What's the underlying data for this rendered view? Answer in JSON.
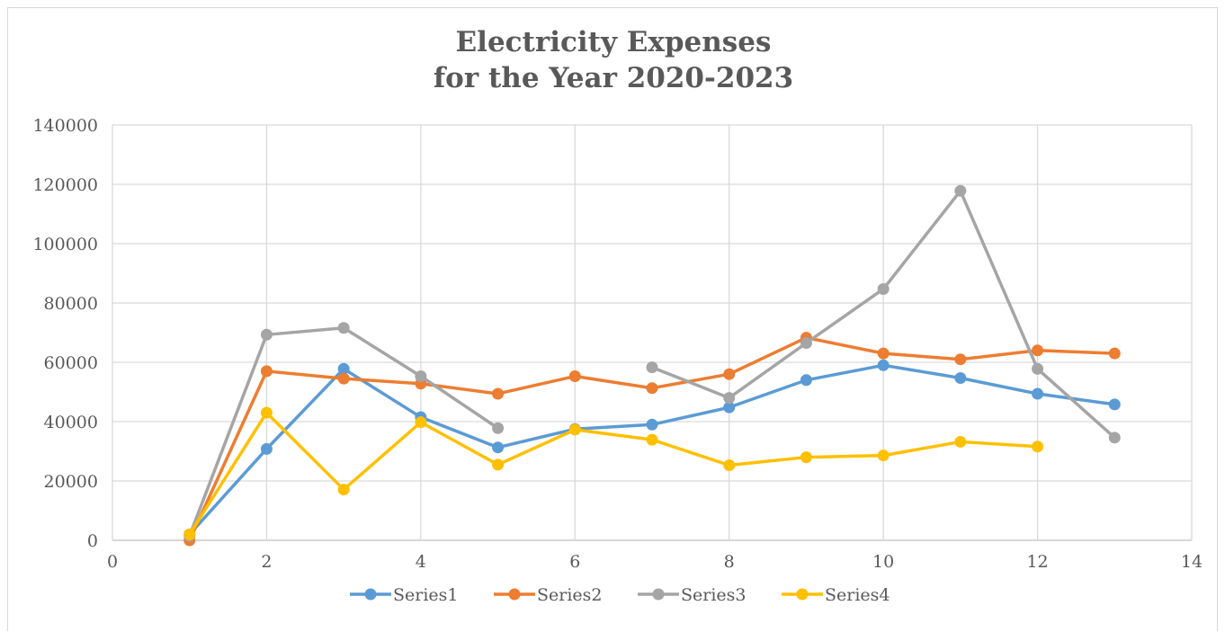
{
  "chart_data": {
    "type": "scatter",
    "title_lines": [
      "Electricity Expenses",
      "for the Year 2020-2023"
    ],
    "xlabel": "",
    "ylabel": "",
    "xlim": [
      0,
      14
    ],
    "ylim": [
      0,
      140000
    ],
    "x_ticks": [
      0,
      2,
      4,
      6,
      8,
      10,
      12,
      14
    ],
    "y_ticks": [
      0,
      20000,
      40000,
      60000,
      80000,
      100000,
      120000,
      140000
    ],
    "x_tick_labels": [
      "0",
      "2",
      "4",
      "6",
      "8",
      "10",
      "12",
      "14"
    ],
    "y_tick_labels": [
      "0",
      "20000",
      "40000",
      "60000",
      "80000",
      "100000",
      "120000",
      "140000"
    ],
    "grid": true,
    "legend_position": "bottom",
    "series": [
      {
        "name": "Series1",
        "color": "#5b9bd5",
        "points": [
          [
            1,
            2000
          ],
          [
            2,
            30800
          ],
          [
            3,
            57800
          ],
          [
            4,
            41500
          ],
          [
            5,
            31300
          ],
          [
            6,
            37500
          ],
          [
            7,
            39000
          ],
          [
            8,
            44800
          ],
          [
            9,
            54000
          ],
          [
            10,
            59000
          ],
          [
            11,
            54700
          ],
          [
            12,
            49400
          ],
          [
            13,
            45800
          ]
        ]
      },
      {
        "name": "Series2",
        "color": "#ed7d31",
        "points": [
          [
            1,
            0
          ],
          [
            2,
            57000
          ],
          [
            3,
            54500
          ],
          [
            4,
            52800
          ],
          [
            5,
            49400
          ],
          [
            6,
            55300
          ],
          [
            7,
            51300
          ],
          [
            8,
            56000
          ],
          [
            9,
            68300
          ],
          [
            10,
            63000
          ],
          [
            11,
            61000
          ],
          [
            12,
            64000
          ],
          [
            13,
            63000
          ]
        ]
      },
      {
        "name": "Series3",
        "color": "#a5a5a5",
        "points": [
          [
            1,
            1500
          ],
          [
            2,
            69300
          ],
          [
            3,
            71600
          ],
          [
            4,
            55300
          ],
          [
            5,
            37800
          ],
          [
            7,
            58300
          ],
          [
            8,
            48000
          ],
          [
            9,
            66500
          ],
          [
            10,
            84700
          ],
          [
            11,
            117800
          ],
          [
            12,
            57800
          ],
          [
            13,
            34600
          ]
        ]
      },
      {
        "name": "Series4",
        "color": "#ffc000",
        "points": [
          [
            1,
            2000
          ],
          [
            2,
            43000
          ],
          [
            3,
            17100
          ],
          [
            4,
            39800
          ],
          [
            5,
            25500
          ],
          [
            6,
            37300
          ],
          [
            7,
            33900
          ],
          [
            8,
            25300
          ],
          [
            9,
            28000
          ],
          [
            10,
            28600
          ],
          [
            11,
            33200
          ],
          [
            12,
            31600
          ]
        ]
      }
    ]
  }
}
